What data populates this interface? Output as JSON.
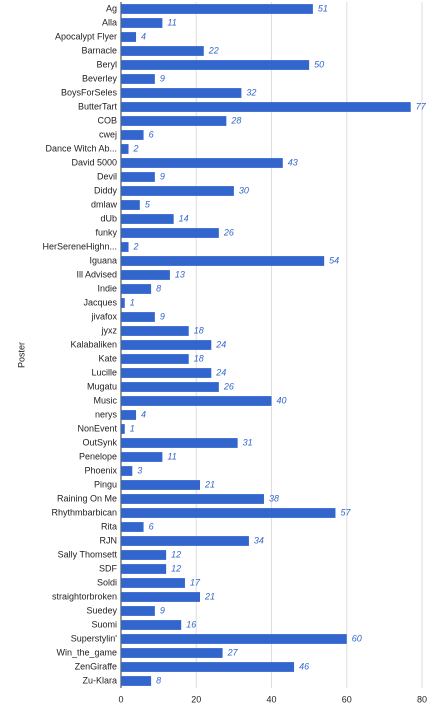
{
  "chart_data": {
    "type": "bar",
    "orientation": "horizontal",
    "y_label": "Poster",
    "categories": [
      "Ag",
      "Alla",
      "Apocalypt Flyer",
      "Barnacle",
      "Beryl",
      "Beverley",
      "BoysForSeles",
      "ButterTart",
      "COB",
      "cwej",
      "Dance Witch Ab...",
      "David 5000",
      "Devil",
      "Diddy",
      "dmlaw",
      "dUb",
      "funky",
      "HerSereneHighn...",
      "Iguana",
      "Ill Advised",
      "Indie",
      "Jacques",
      "jivafox",
      "jyxz",
      "Kalabaliken",
      "Kate",
      "Lucille",
      "Mugatu",
      "Music",
      "nerys",
      "NonEvent",
      "OutSynk",
      "Penelope",
      "Phoenix",
      "Pingu",
      "Raining On Me",
      "Rhythmbarbican",
      "Rita",
      "RJN",
      "Sally Thomsett",
      "SDF",
      "Soldi",
      "straightorbroken",
      "Suedey",
      "Suomi",
      "Superstylin'",
      "Win_the_game",
      "ZenGiraffe",
      "Zu-Klara"
    ],
    "values": [
      51,
      11,
      4,
      22,
      50,
      9,
      32,
      77,
      28,
      6,
      2,
      43,
      9,
      30,
      5,
      14,
      26,
      2,
      54,
      13,
      8,
      1,
      9,
      18,
      24,
      18,
      24,
      26,
      40,
      4,
      1,
      31,
      11,
      3,
      21,
      38,
      57,
      6,
      34,
      12,
      12,
      17,
      21,
      9,
      16,
      60,
      27,
      46,
      8
    ],
    "color": "#3366cc",
    "xlim": [
      0,
      80
    ],
    "xticks": [
      0,
      20,
      40,
      60,
      80
    ],
    "grid": true
  }
}
